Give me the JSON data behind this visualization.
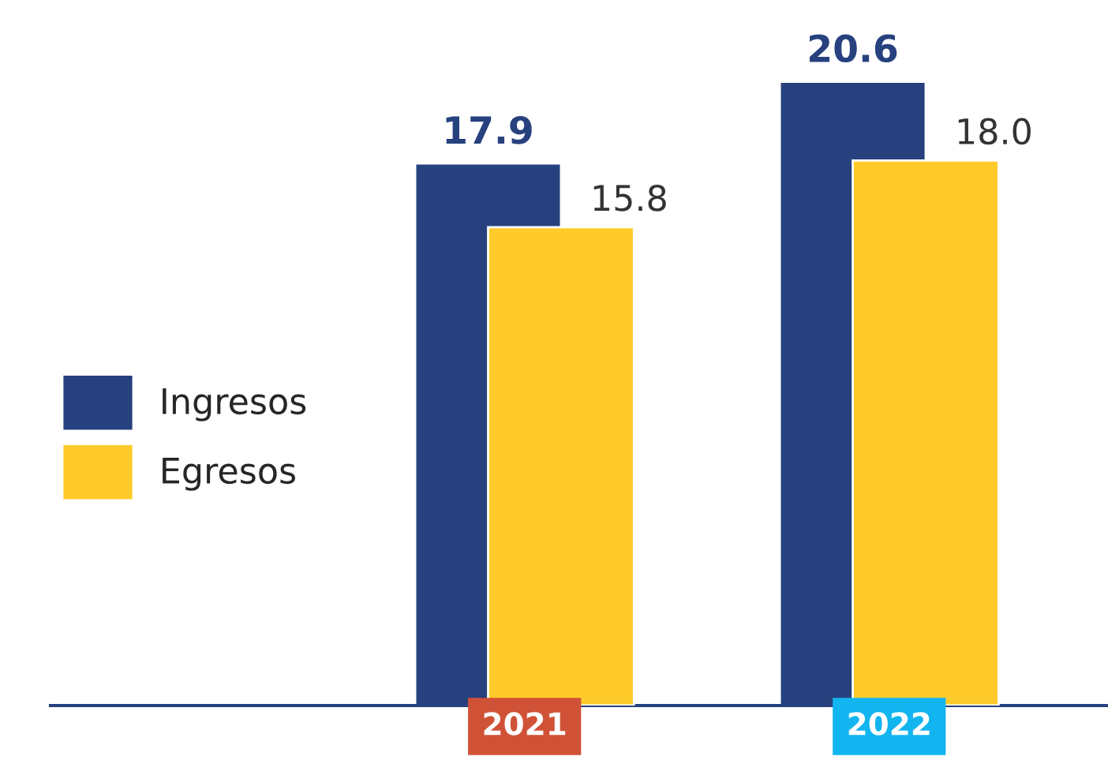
{
  "chart_data": {
    "type": "bar",
    "categories": [
      "2021",
      "2022"
    ],
    "series": [
      {
        "name": "Ingresos",
        "color": "#27417f",
        "values": [
          17.9,
          20.6
        ],
        "value_labels": [
          "17.9",
          "20.6"
        ]
      },
      {
        "name": "Egresos",
        "color": "#fecb2b",
        "values": [
          15.8,
          18.0
        ],
        "value_labels": [
          "15.8",
          "18.0"
        ]
      }
    ],
    "legend": "left"
  }
}
